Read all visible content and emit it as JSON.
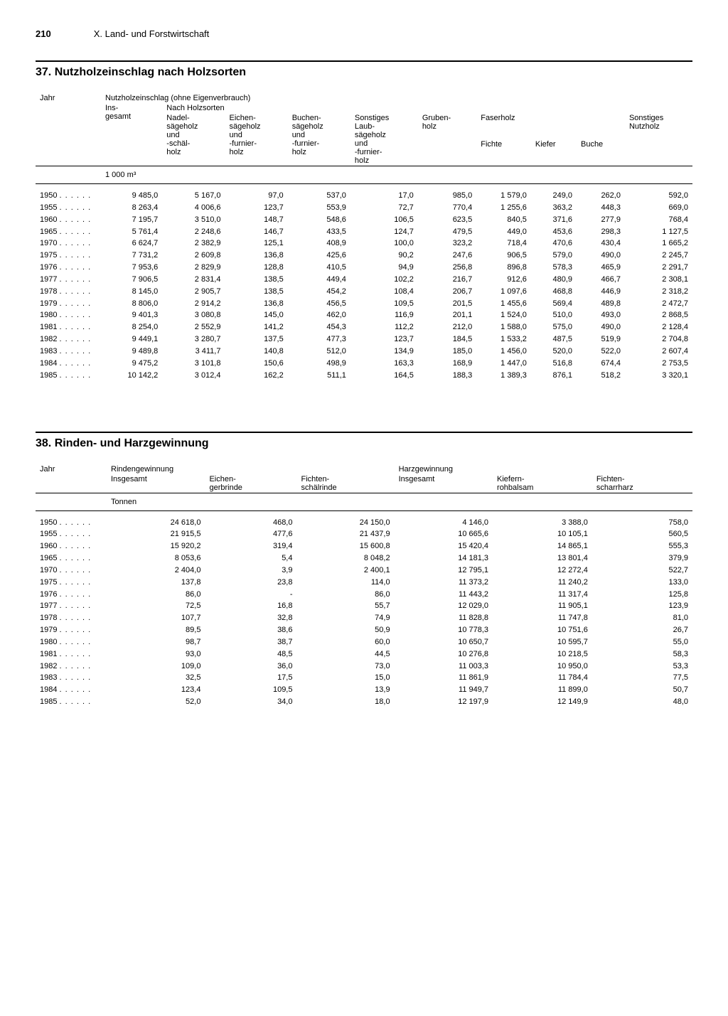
{
  "page_number": "210",
  "chapter_title": "X. Land- und Forstwirtschaft",
  "table37": {
    "title": "37. Nutzholzeinschlag nach Holzsorten",
    "col_year": "Jahr",
    "group_main": "Nutzholzeinschlag (ohne Eigenverbrauch)",
    "col_insgesamt": "Ins-\ngesamt",
    "group_holzsorten": "Nach Holzsorten",
    "col_nadel": "Nadel-\nsägeholz\nund\n-schäl-\nholz",
    "col_eichen": "Eichen-\nsägeholz\nund\n-furnier-\nholz",
    "col_buchen": "Buchen-\nsägeholz\nund\n-furnier-\nholz",
    "col_sonst_laub": "Sonstiges\nLaub-\nsägeholz\nund\n-furnier-\nholz",
    "col_gruben": "Gruben-\nholz",
    "group_faser": "Faserholz",
    "col_fichte": "Fichte",
    "col_kiefer": "Kiefer",
    "col_buche": "Buche",
    "col_sonst_nutz": "Sonstiges\nNutzholz",
    "unit": "1 000 m³",
    "rows": [
      {
        "y": "1950",
        "v": [
          "9 485,0",
          "5 167,0",
          "97,0",
          "537,0",
          "17,0",
          "985,0",
          "1 579,0",
          "249,0",
          "262,0",
          "592,0"
        ]
      },
      {
        "y": "1955",
        "v": [
          "8 263,4",
          "4 006,6",
          "123,7",
          "553,9",
          "72,7",
          "770,4",
          "1 255,6",
          "363,2",
          "448,3",
          "669,0"
        ]
      },
      {
        "y": "1960",
        "v": [
          "7 195,7",
          "3 510,0",
          "148,7",
          "548,6",
          "106,5",
          "623,5",
          "840,5",
          "371,6",
          "277,9",
          "768,4"
        ]
      },
      {
        "y": "1965",
        "v": [
          "5 761,4",
          "2 248,6",
          "146,7",
          "433,5",
          "124,7",
          "479,5",
          "449,0",
          "453,6",
          "298,3",
          "1 127,5"
        ]
      },
      {
        "y": "1970",
        "v": [
          "6 624,7",
          "2 382,9",
          "125,1",
          "408,9",
          "100,0",
          "323,2",
          "718,4",
          "470,6",
          "430,4",
          "1 665,2"
        ]
      },
      {
        "y": "1975",
        "v": [
          "7 731,2",
          "2 609,8",
          "136,8",
          "425,6",
          "90,2",
          "247,6",
          "906,5",
          "579,0",
          "490,0",
          "2 245,7"
        ]
      },
      {
        "y": "1976",
        "v": [
          "7 953,6",
          "2 829,9",
          "128,8",
          "410,5",
          "94,9",
          "256,8",
          "896,8",
          "578,3",
          "465,9",
          "2 291,7"
        ]
      },
      {
        "y": "1977",
        "v": [
          "7 906,5",
          "2 831,4",
          "138,5",
          "449,4",
          "102,2",
          "216,7",
          "912,6",
          "480,9",
          "466,7",
          "2 308,1"
        ]
      },
      {
        "y": "1978",
        "v": [
          "8 145,0",
          "2 905,7",
          "138,5",
          "454,2",
          "108,4",
          "206,7",
          "1 097,6",
          "468,8",
          "446,9",
          "2 318,2"
        ]
      },
      {
        "y": "1979",
        "v": [
          "8 806,0",
          "2 914,2",
          "136,8",
          "456,5",
          "109,5",
          "201,5",
          "1 455,6",
          "569,4",
          "489,8",
          "2 472,7"
        ]
      },
      {
        "y": "1980",
        "v": [
          "9 401,3",
          "3 080,8",
          "145,0",
          "462,0",
          "116,9",
          "201,1",
          "1 524,0",
          "510,0",
          "493,0",
          "2 868,5"
        ]
      },
      {
        "y": "1981",
        "v": [
          "8 254,0",
          "2 552,9",
          "141,2",
          "454,3",
          "112,2",
          "212,0",
          "1 588,0",
          "575,0",
          "490,0",
          "2 128,4"
        ]
      },
      {
        "y": "1982",
        "v": [
          "9 449,1",
          "3 280,7",
          "137,5",
          "477,3",
          "123,7",
          "184,5",
          "1 533,2",
          "487,5",
          "519,9",
          "2 704,8"
        ]
      },
      {
        "y": "1983",
        "v": [
          "9 489,8",
          "3 411,7",
          "140,8",
          "512,0",
          "134,9",
          "185,0",
          "1 456,0",
          "520,0",
          "522,0",
          "2 607,4"
        ]
      },
      {
        "y": "1984",
        "v": [
          "9 475,2",
          "3 101,8",
          "150,6",
          "498,9",
          "163,3",
          "168,9",
          "1 447,0",
          "516,8",
          "674,4",
          "2 753,5"
        ]
      },
      {
        "y": "1985",
        "v": [
          "10 142,2",
          "3 012,4",
          "162,2",
          "511,1",
          "164,5",
          "188,3",
          "1 389,3",
          "876,1",
          "518,2",
          "3 320,1"
        ]
      }
    ]
  },
  "table38": {
    "title": "38. Rinden- und Harzgewinnung",
    "col_year": "Jahr",
    "group_rinde": "Rindengewinnung",
    "group_harz": "Harzgewinnung",
    "col_r_ins": "Insgesamt",
    "col_r_eichen": "Eichen-\ngerbrinde",
    "col_r_fichten": "Fichten-\nschälrinde",
    "col_h_ins": "Insgesamt",
    "col_h_kiefern": "Kiefern-\nrohbalsam",
    "col_h_fichten": "Fichten-\nscharrharz",
    "unit": "Tonnen",
    "rows": [
      {
        "y": "1950",
        "v": [
          "24 618,0",
          "468,0",
          "24 150,0",
          "4 146,0",
          "3 388,0",
          "758,0"
        ]
      },
      {
        "y": "1955",
        "v": [
          "21 915,5",
          "477,6",
          "21 437,9",
          "10 665,6",
          "10 105,1",
          "560,5"
        ]
      },
      {
        "y": "1960",
        "v": [
          "15 920,2",
          "319,4",
          "15 600,8",
          "15 420,4",
          "14 865,1",
          "555,3"
        ]
      },
      {
        "y": "1965",
        "v": [
          "8 053,6",
          "5,4",
          "8 048,2",
          "14 181,3",
          "13 801,4",
          "379,9"
        ]
      },
      {
        "y": "1970",
        "v": [
          "2 404,0",
          "3,9",
          "2 400,1",
          "12 795,1",
          "12 272,4",
          "522,7"
        ]
      },
      {
        "y": "1975",
        "v": [
          "137,8",
          "23,8",
          "114,0",
          "11 373,2",
          "11 240,2",
          "133,0"
        ]
      },
      {
        "y": "1976",
        "v": [
          "86,0",
          "-",
          "86,0",
          "11 443,2",
          "11 317,4",
          "125,8"
        ]
      },
      {
        "y": "1977",
        "v": [
          "72,5",
          "16,8",
          "55,7",
          "12 029,0",
          "11 905,1",
          "123,9"
        ]
      },
      {
        "y": "1978",
        "v": [
          "107,7",
          "32,8",
          "74,9",
          "11 828,8",
          "11 747,8",
          "81,0"
        ]
      },
      {
        "y": "1979",
        "v": [
          "89,5",
          "38,6",
          "50,9",
          "10 778,3",
          "10 751,6",
          "26,7"
        ]
      },
      {
        "y": "1980",
        "v": [
          "98,7",
          "38,7",
          "60,0",
          "10 650,7",
          "10 595,7",
          "55,0"
        ]
      },
      {
        "y": "1981",
        "v": [
          "93,0",
          "48,5",
          "44,5",
          "10 276,8",
          "10 218,5",
          "58,3"
        ]
      },
      {
        "y": "1982",
        "v": [
          "109,0",
          "36,0",
          "73,0",
          "11 003,3",
          "10 950,0",
          "53,3"
        ]
      },
      {
        "y": "1983",
        "v": [
          "32,5",
          "17,5",
          "15,0",
          "11 861,9",
          "11 784,4",
          "77,5"
        ]
      },
      {
        "y": "1984",
        "v": [
          "123,4",
          "109,5",
          "13,9",
          "11 949,7",
          "11 899,0",
          "50,7"
        ]
      },
      {
        "y": "1985",
        "v": [
          "52,0",
          "34,0",
          "18,0",
          "12 197,9",
          "12 149,9",
          "48,0"
        ]
      }
    ]
  }
}
